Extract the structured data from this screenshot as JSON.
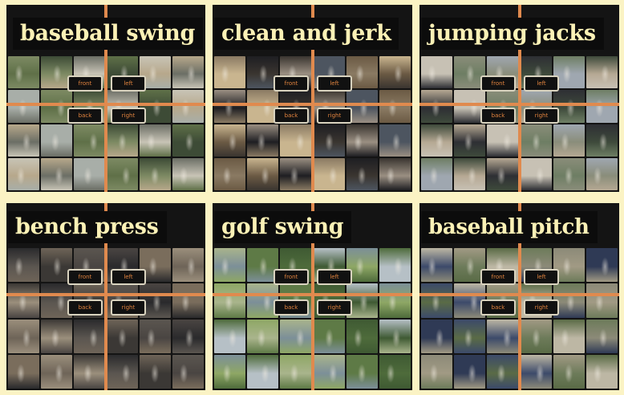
{
  "panels": [
    {
      "title": "baseball swing",
      "tags": [
        "front",
        "left",
        "back",
        "right"
      ],
      "palette": [
        "#7d8a63",
        "#b7a88b",
        "#5f7048",
        "#3d4b36",
        "#a8aea8",
        "#c8c4b6",
        "#6b6e65"
      ]
    },
    {
      "title": "clean and jerk",
      "tags": [
        "front",
        "left",
        "back",
        "right"
      ],
      "palette": [
        "#3a3530",
        "#8a7a63",
        "#c9b58f",
        "#4d5560",
        "#1e1e22",
        "#9a8f82",
        "#6b5a44"
      ]
    },
    {
      "title": "jumping jacks",
      "tags": [
        "front",
        "left",
        "back",
        "right"
      ],
      "palette": [
        "#6e7e64",
        "#9fa7b0",
        "#c7c1b4",
        "#3e4a3b",
        "#2e2f34",
        "#8a8d7a",
        "#b5a893"
      ]
    },
    {
      "title": "bench press",
      "tags": [
        "front",
        "left",
        "back",
        "right"
      ],
      "palette": [
        "#3b3835",
        "#7a6d5c",
        "#5b5650",
        "#2a2a2c",
        "#9b8f7c",
        "#4a4542",
        "#6e6458"
      ]
    },
    {
      "title": "golf swing",
      "tags": [
        "front",
        "left",
        "back",
        "right"
      ],
      "palette": [
        "#5e7a46",
        "#8ea765",
        "#7c8f98",
        "#3f5a33",
        "#a9b48c",
        "#4e6b3b",
        "#b6c0c6"
      ]
    },
    {
      "title": "baseball pitch",
      "tags": [
        "front",
        "left",
        "back",
        "right"
      ],
      "palette": [
        "#6d7b5a",
        "#a19a84",
        "#3c4a6a",
        "#8c8a78",
        "#5a6b46",
        "#bdb7a4",
        "#2f3a55"
      ]
    }
  ]
}
